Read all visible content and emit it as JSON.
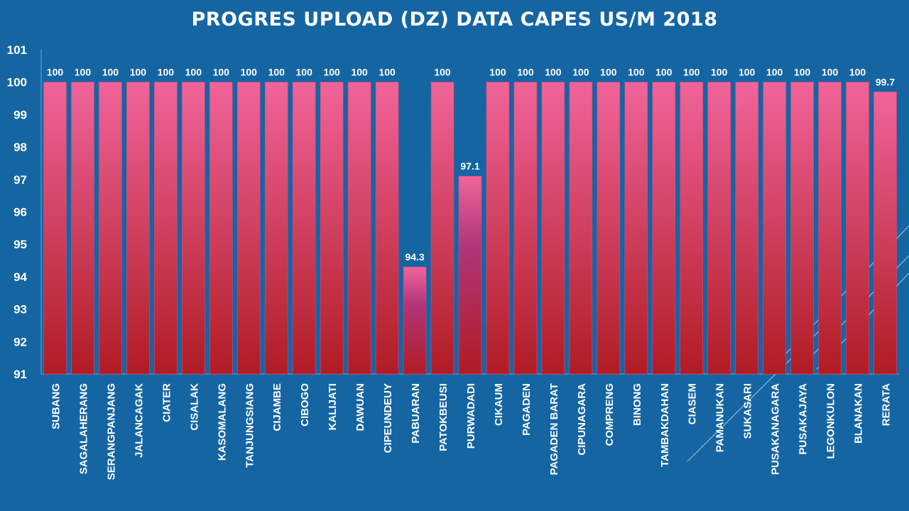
{
  "chart_data": {
    "type": "bar",
    "title": "PROGRES UPLOAD (DZ) DATA CAPES US/M 2018",
    "xlabel": "",
    "ylabel": "",
    "ylim": [
      91,
      101
    ],
    "y_ticks": [
      "91",
      "92",
      "93",
      "94",
      "95",
      "96",
      "97",
      "98",
      "99",
      "100",
      "101"
    ],
    "grid": false,
    "categories": [
      "SUBANG",
      "SAGALAHERANG",
      "SERANGPANJANG",
      "JALANCAGAK",
      "CIATER",
      "CISALAK",
      "KASOMALANG",
      "TANJUNGSIANG",
      "CIJAMBE",
      "CIBOGO",
      "KALIJATI",
      "DAWUAN",
      "CIPEUNDEUY",
      "PABUARAN",
      "PATOKBEUSI",
      "PURWADADI",
      "CIKAUM",
      "PAGADEN",
      "PAGADEN BARAT",
      "CIPUNAGARA",
      "COMPRENG",
      "BINONG",
      "TAMBAKDAHAN",
      "CIASEM",
      "PAMANUKAN",
      "SUKASARI",
      "PUSAKANAGARA",
      "PUSAKAJAYA",
      "LEGONKULON",
      "BLANAKAN",
      "RERATA"
    ],
    "values": [
      100,
      100,
      100,
      100,
      100,
      100,
      100,
      100,
      100,
      100,
      100,
      100,
      100,
      94.3,
      100,
      97.1,
      100,
      100,
      100,
      100,
      100,
      100,
      100,
      100,
      100,
      100,
      100,
      100,
      100,
      100,
      99.7
    ],
    "data_labels": [
      "100",
      "100",
      "100",
      "100",
      "100",
      "100",
      "100",
      "100",
      "100",
      "100",
      "100",
      "100",
      "100",
      "94.3",
      "100",
      "97.1",
      "100",
      "100",
      "100",
      "100",
      "100",
      "100",
      "100",
      "100",
      "100",
      "100",
      "100",
      "100",
      "100",
      "100",
      "99.7"
    ],
    "colors": {
      "background": "#1565a3",
      "bar_top": "#f0649a",
      "bar_bottom": "#b01c24",
      "text": "#ffffff"
    }
  }
}
